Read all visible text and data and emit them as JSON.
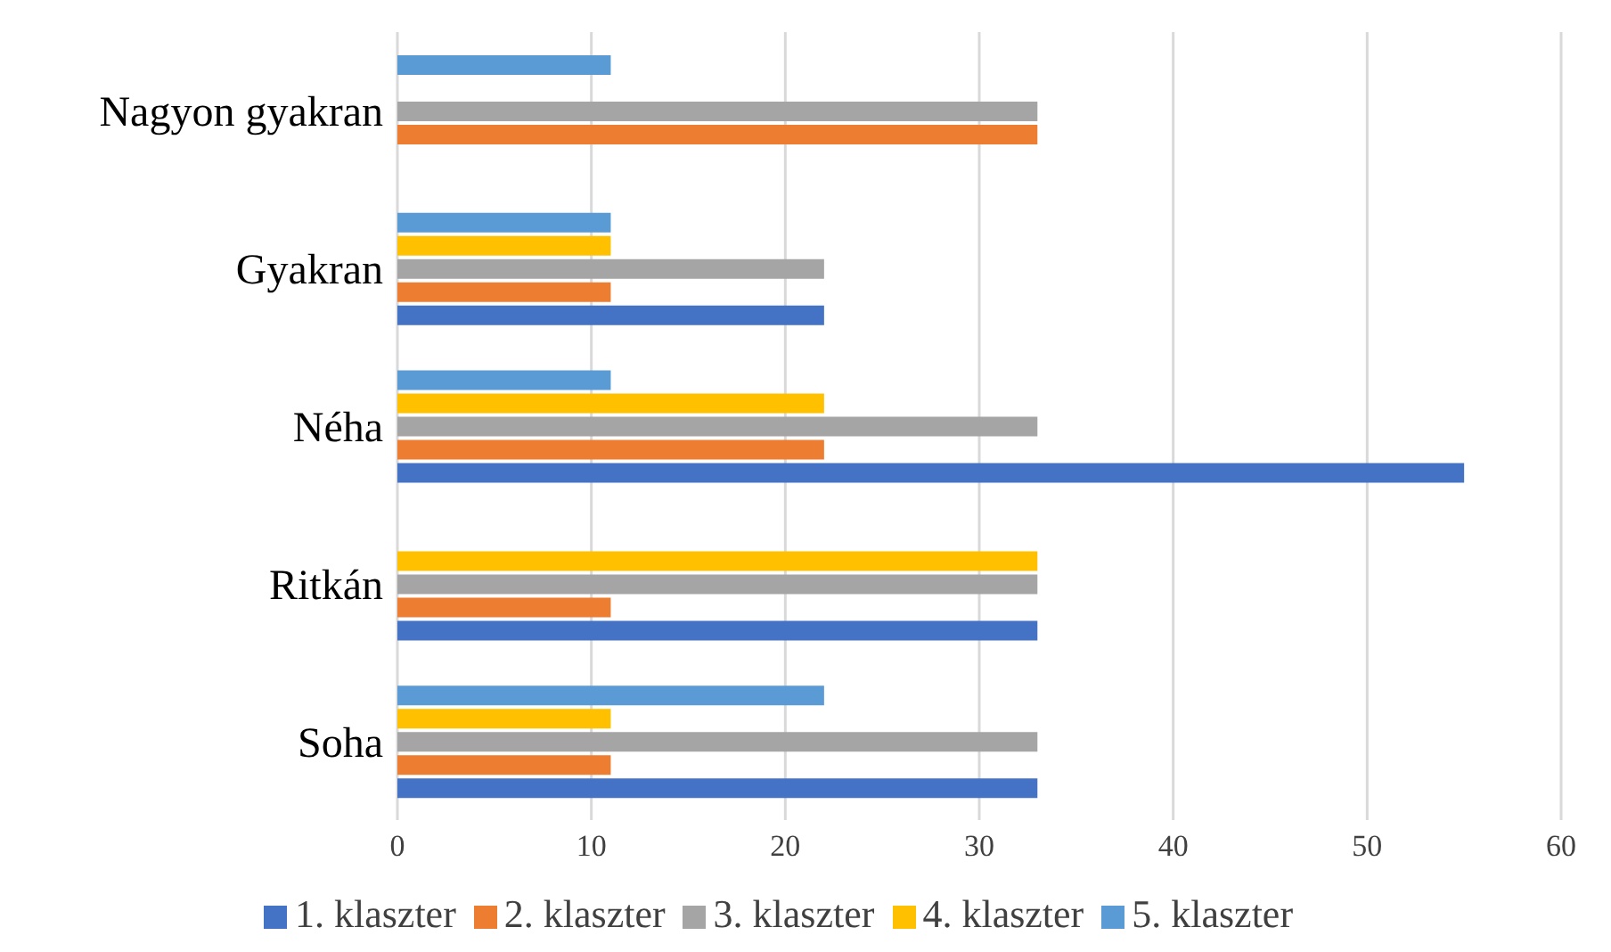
{
  "chart_data": {
    "type": "bar",
    "orientation": "horizontal",
    "categories": [
      "Nagyon gyakran",
      "Gyakran",
      "Néha",
      "Ritkán",
      "Soha"
    ],
    "series": [
      {
        "name": "5. klaszter",
        "color": "#5b9bd5",
        "values": [
          11,
          11,
          11,
          null,
          22
        ]
      },
      {
        "name": "4. klaszter",
        "color": "#ffc000",
        "values": [
          null,
          11,
          22,
          33,
          11
        ]
      },
      {
        "name": "3. klaszter",
        "color": "#a5a5a5",
        "values": [
          33,
          22,
          33,
          33,
          33
        ]
      },
      {
        "name": "2. klaszter",
        "color": "#ed7d31",
        "values": [
          33,
          11,
          22,
          11,
          11
        ]
      },
      {
        "name": "1. klaszter",
        "color": "#4472c4",
        "values": [
          null,
          22,
          55,
          33,
          33
        ]
      }
    ],
    "xlim": [
      0,
      60
    ],
    "xticks": [
      0,
      10,
      20,
      30,
      40,
      50,
      60
    ],
    "grid": "x",
    "legend": "bottom"
  }
}
